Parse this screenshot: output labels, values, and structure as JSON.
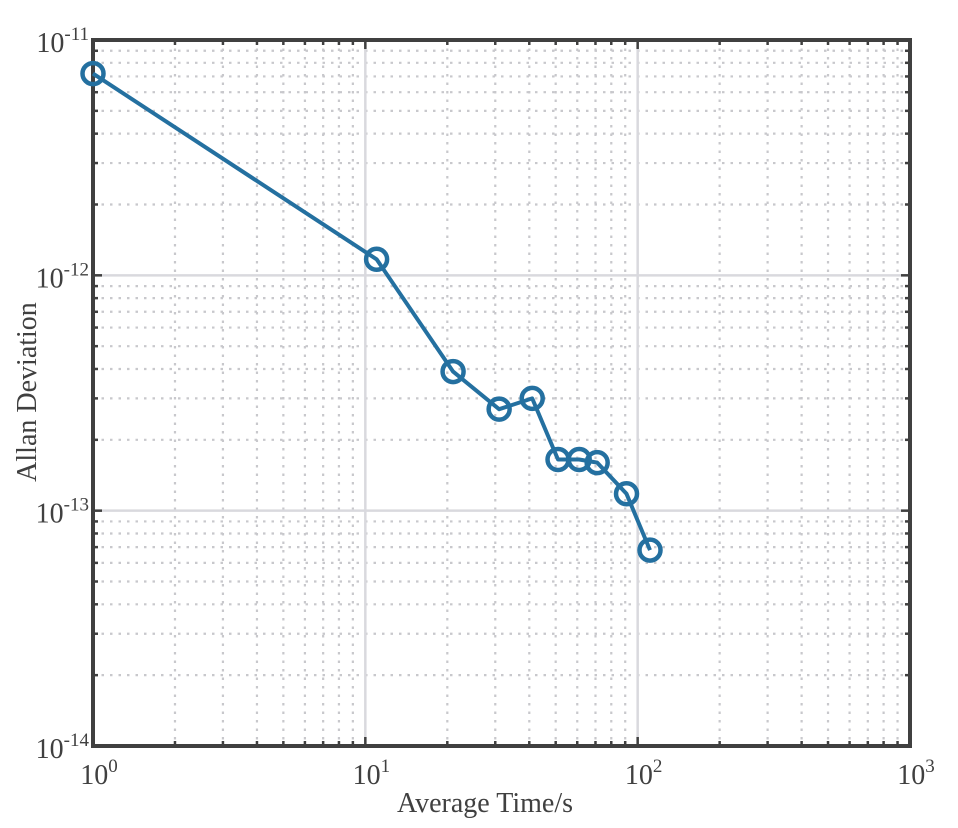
{
  "chart_data": {
    "type": "line",
    "xlabel": "Average Time/s",
    "ylabel": "Allan Deviation",
    "xscale": "log",
    "yscale": "log",
    "xlim": [
      1,
      1000
    ],
    "ylim": [
      1e-14,
      1e-11
    ],
    "grid": true,
    "minor_grid": true,
    "x_tick_labels": [
      {
        "base": "10",
        "exp": "0"
      },
      {
        "base": "10",
        "exp": "1"
      },
      {
        "base": "10",
        "exp": "2"
      },
      {
        "base": "10",
        "exp": "3"
      }
    ],
    "y_tick_labels": [
      {
        "base": "10",
        "exp": "-14"
      },
      {
        "base": "10",
        "exp": "-13"
      },
      {
        "base": "10",
        "exp": "-12"
      },
      {
        "base": "10",
        "exp": "-11"
      }
    ],
    "series": [
      {
        "marker": "circle",
        "color": "#2470a0",
        "x": [
          1,
          11,
          21,
          31,
          41,
          51,
          61,
          71,
          91,
          111
        ],
        "y": [
          7.2e-12,
          1.17e-12,
          3.9e-13,
          2.7e-13,
          3e-13,
          1.65e-13,
          1.65e-13,
          1.6e-13,
          1.18e-13,
          6.8e-14
        ]
      }
    ],
    "colors": {
      "axis": "#404040",
      "major_grid": "#d9d9de",
      "minor_grid": "#c8c8cc"
    }
  }
}
